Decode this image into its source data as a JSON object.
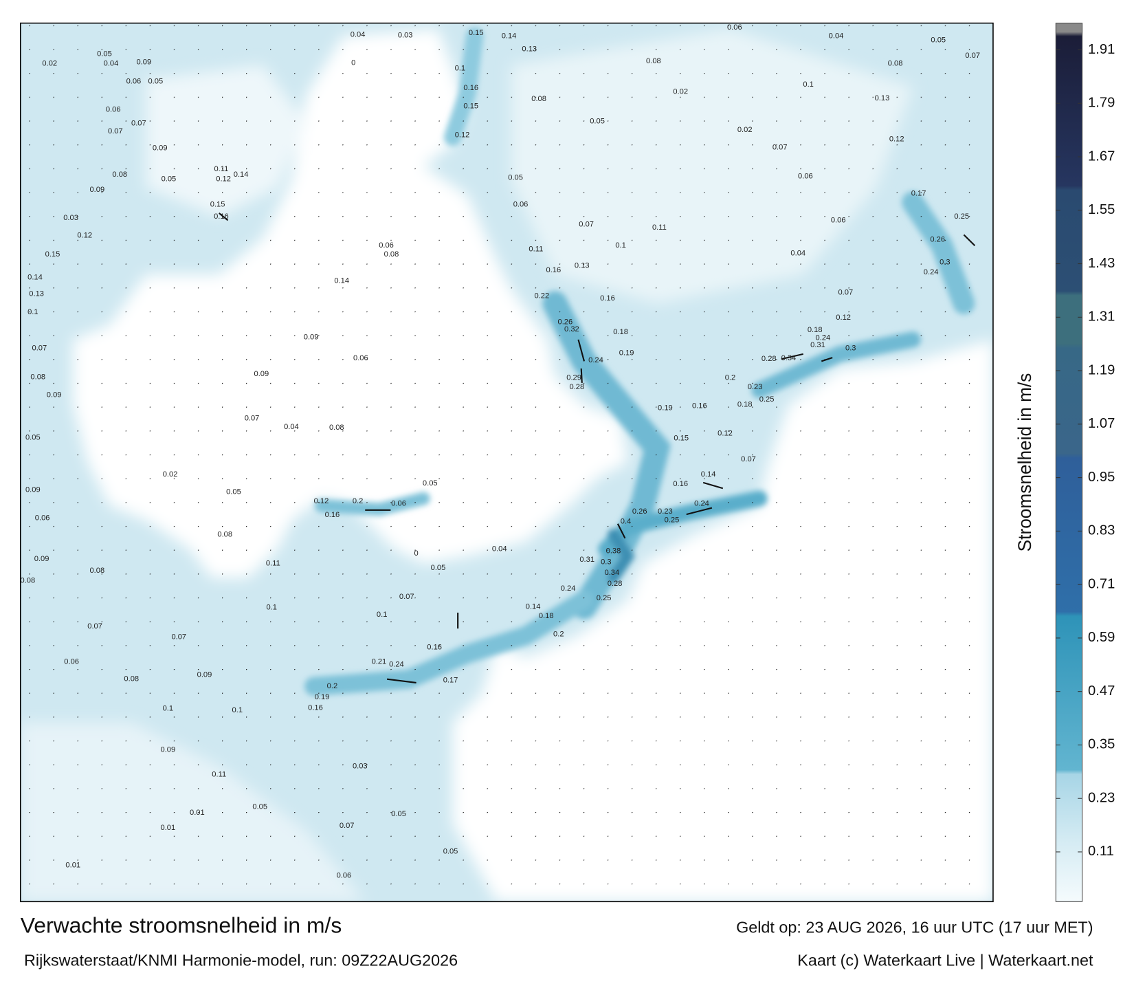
{
  "title": "Verwachte stroomsnelheid in m/s",
  "valid_time": "Geldt op: 23 AUG 2026, 16 uur UTC (17 uur MET)",
  "source": "Rijkswaterstaat/KNMI Harmonie-model, run: 09Z22AUG2026",
  "credit": "Kaart (c) Waterkaart Live | Waterkaart.net",
  "colorbar": {
    "label": "Stroomsnelheid in m/s",
    "lim": [
      0,
      1.97
    ],
    "ticks": [
      0.11,
      0.23,
      0.35,
      0.47,
      0.59,
      0.71,
      0.83,
      0.95,
      1.07,
      1.19,
      1.31,
      1.43,
      1.55,
      1.67,
      1.79,
      1.91
    ]
  },
  "map_labels": [
    0.02,
    0.05,
    0.04,
    0.09,
    0.06,
    0.05,
    0.06,
    0.07,
    0.07,
    0.09,
    0.08,
    0.05,
    0.11,
    0.12,
    0.15,
    0.16,
    0.14,
    0.09,
    0.03,
    0.12,
    0.15,
    0.14,
    0.13,
    0.1,
    0.07,
    0.08,
    0.09,
    0.05,
    0.09,
    0.06,
    0.09,
    0.08,
    0.08,
    0.07,
    0.07,
    0.06,
    0.08,
    0.09,
    0.1,
    0.1,
    0.09,
    0.11,
    0.01,
    0.01,
    0.01,
    0.06,
    0.07,
    0.05,
    0.05,
    0.04,
    0.03,
    0.15,
    0.14,
    0.13,
    0.1,
    0.16,
    0.15,
    0.12,
    0.08,
    0.05,
    0.06,
    0.11,
    0.16,
    0.13,
    0.1,
    0.07,
    0.11,
    0.05,
    0.08,
    0.02,
    0.02,
    0.07,
    0.06,
    0.06,
    0.04,
    0.07,
    0.12,
    0.04,
    0.08,
    0.05,
    0.07,
    0.1,
    0.13,
    0.12,
    0.17,
    0.25,
    0.26,
    0.3,
    0.24,
    0.22,
    0.26,
    0.32,
    0.24,
    0.29,
    0.28,
    0.19,
    0.18,
    0.16,
    0.2,
    0.23,
    0.28,
    0.34,
    0.18,
    0.24,
    0.31,
    0.3,
    0.16,
    0.19,
    0.15,
    0.18,
    0.25,
    0.12,
    0.07,
    0.14,
    0.16,
    0.24,
    0.26,
    0.23,
    0.25,
    0.4,
    0.38,
    0.3,
    0.34,
    0.28,
    0.25,
    0.31,
    0.24,
    0.18,
    0.14,
    0.2,
    0.04,
    0.05,
    0.07,
    0.1,
    0.1,
    0.11,
    0.08,
    0.05,
    0.02,
    0.12,
    0.16,
    0.2,
    0.06,
    0.05,
    0.08,
    0.04,
    0.07,
    0.09,
    0.09,
    0.06,
    0.14,
    0.08,
    0.06,
    0.21,
    0.24,
    0.16,
    0.17,
    0.2,
    0.19,
    0.16,
    0.03,
    0.05,
    0.06,
    0,
    0
  ]
}
